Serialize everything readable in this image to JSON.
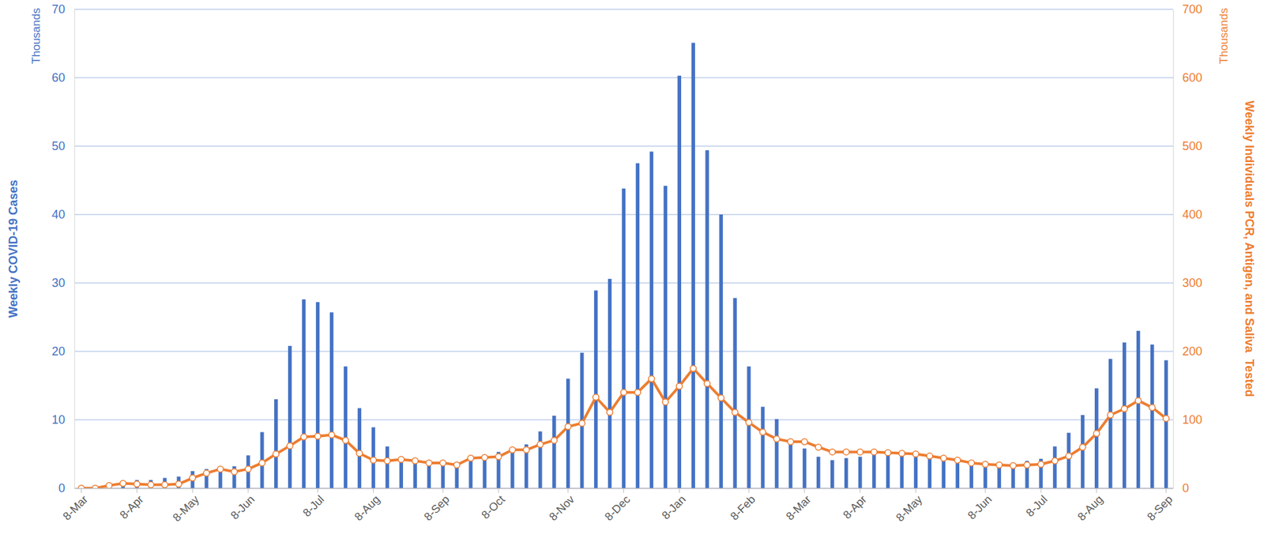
{
  "chart_data": {
    "type": "bar",
    "ylabel": "Weekly COVID-19 Cases",
    "y2label": "Weekly Individuals PCR, Antigen, and Saliva  Tested",
    "annotations": [
      {
        "text": "Thousands",
        "axis": "y"
      },
      {
        "text": "Thousands",
        "axis": "y2"
      }
    ],
    "categories": [
      "8-Mar",
      null,
      null,
      null,
      "8-Apr",
      null,
      null,
      null,
      "8-May",
      null,
      null,
      null,
      "8-Jun",
      null,
      null,
      null,
      null,
      "8-Jul",
      null,
      null,
      null,
      "8-Aug",
      null,
      null,
      null,
      null,
      "8-Sep",
      null,
      null,
      null,
      "8-Oct",
      null,
      null,
      null,
      null,
      "8-Nov",
      null,
      null,
      null,
      "8-Dec",
      null,
      null,
      null,
      "8-Jan",
      null,
      null,
      null,
      null,
      "8-Feb",
      null,
      null,
      null,
      "8-Mar",
      null,
      null,
      null,
      "8-Apr",
      null,
      null,
      null,
      "8-May",
      null,
      null,
      null,
      null,
      "8-Jun",
      null,
      null,
      null,
      "8-Jul",
      null,
      null,
      null,
      "8-Aug",
      null,
      null,
      null,
      null,
      "8-Sep"
    ],
    "series": [
      {
        "type": "bar",
        "color": "#4472c4",
        "values": [
          0,
          0.1,
          0.5,
          1.0,
          1.2,
          1.2,
          1.5,
          1.7,
          2.5,
          2.8,
          3.0,
          3.2,
          4.8,
          8.2,
          13.0,
          20.8,
          27.6,
          27.2,
          25.7,
          17.8,
          11.7,
          8.9,
          6.1,
          4.6,
          4.1,
          3.6,
          3.5,
          3.8,
          4.3,
          4.4,
          5.3,
          6.0,
          6.4,
          8.3,
          10.6,
          16.0,
          19.8,
          28.9,
          30.6,
          43.8,
          47.5,
          49.2,
          44.2,
          60.3,
          65.1,
          49.4,
          40.0,
          27.8,
          17.8,
          11.9,
          10.1,
          7.0,
          5.8,
          4.6,
          4.1,
          4.4,
          4.6,
          5.1,
          5.3,
          5.0,
          4.9,
          4.7,
          4.5,
          4.3,
          3.8,
          3.5,
          3.5,
          3.4,
          4.0,
          4.3,
          6.1,
          8.1,
          10.7,
          14.6,
          18.9,
          21.3,
          23.0,
          21.0,
          18.7
        ]
      },
      {
        "type": "line",
        "color": "#ed7d31",
        "axis": "y2",
        "marker": "circle",
        "values": [
          0,
          0,
          4,
          7,
          6,
          5,
          5,
          6,
          15,
          22,
          28,
          24,
          28,
          37,
          50,
          62,
          75,
          76,
          78,
          70,
          51,
          41,
          40,
          42,
          40,
          37,
          37,
          34,
          44,
          45,
          46,
          56,
          56,
          64,
          70,
          90,
          95,
          133,
          111,
          140,
          140,
          160,
          126,
          149,
          175,
          153,
          132,
          111,
          96,
          82,
          72,
          68,
          68,
          60,
          53,
          53,
          53,
          53,
          52,
          51,
          50,
          47,
          44,
          41,
          37,
          35,
          34,
          33,
          34,
          35,
          40,
          47,
          60,
          80,
          107,
          116,
          128,
          118,
          102
        ]
      }
    ],
    "ylim": [
      0,
      70
    ],
    "yticks": [
      0,
      10,
      20,
      30,
      40,
      50,
      60,
      70
    ],
    "y2lim": [
      0,
      700
    ],
    "y2ticks": [
      0,
      100,
      200,
      300,
      400,
      500,
      600,
      700
    ],
    "grid": true
  }
}
